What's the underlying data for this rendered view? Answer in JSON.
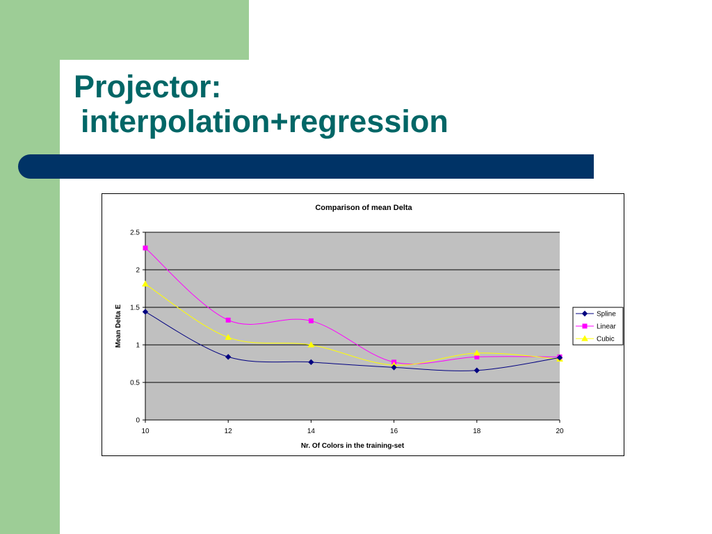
{
  "slide": {
    "title_line1": "Projector:",
    "title_line2": "interpolation+regression",
    "colors": {
      "green": "#9dcd96",
      "title": "#006666",
      "band": "#003366"
    }
  },
  "chart_data": {
    "type": "line",
    "title": "Comparison of mean Delta",
    "xlabel": "Nr. Of Colors in the training-set",
    "ylabel": "Mean Delta E",
    "x": [
      10,
      12,
      14,
      16,
      18,
      20
    ],
    "xlim": [
      10,
      20
    ],
    "ylim": [
      0,
      2.5
    ],
    "xticks": [
      "10",
      "12",
      "14",
      "16",
      "18",
      "20"
    ],
    "yticks": [
      "0",
      "0.5",
      "1",
      "1.5",
      "2",
      "2.5"
    ],
    "grid": true,
    "plot_background": "#c0c0c0",
    "legend_position": "right",
    "series": [
      {
        "name": "Spline",
        "color": "#000080",
        "marker": "diamond",
        "values": [
          1.44,
          0.84,
          0.77,
          0.7,
          0.66,
          0.83
        ]
      },
      {
        "name": "Linear",
        "color": "#ff00ff",
        "marker": "square",
        "values": [
          2.29,
          1.33,
          1.32,
          0.77,
          0.84,
          0.84
        ]
      },
      {
        "name": "Cubic",
        "color": "#ffff00",
        "marker": "triangle",
        "values": [
          1.81,
          1.1,
          1.0,
          0.73,
          0.89,
          0.81
        ]
      }
    ]
  }
}
